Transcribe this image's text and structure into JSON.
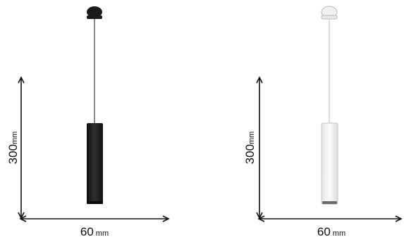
{
  "colors": {
    "background": "#ffffff",
    "dimension_line": "#111111",
    "lamp_black": "#1b1b1b",
    "lamp_white_fill": "#f1f1f1",
    "lamp_white_outline": "#b9b9b9"
  },
  "lamps": [
    {
      "variant": "black",
      "height_value": "300",
      "height_unit": "mm",
      "width_value": "60",
      "width_unit": "mm"
    },
    {
      "variant": "white",
      "height_value": "300",
      "height_unit": "mm",
      "width_value": "60",
      "width_unit": "mm"
    }
  ]
}
